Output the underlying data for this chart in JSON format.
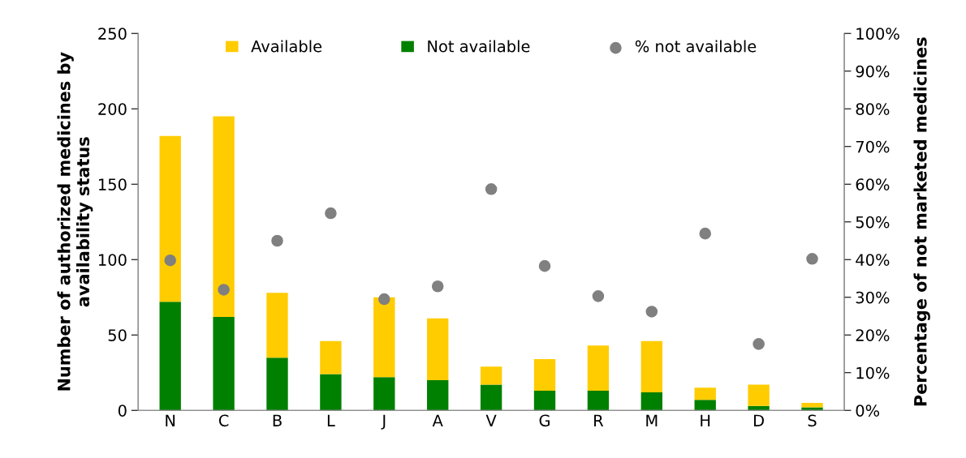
{
  "chart_data": {
    "type": "bar",
    "stacked": true,
    "ylabel": "Number of authorized medicines by availability status",
    "y2label": "Percentage of not marketed medicines",
    "categories": [
      "N",
      "C",
      "B",
      "L",
      "J",
      "A",
      "V",
      "G",
      "R",
      "M",
      "H",
      "D",
      "S"
    ],
    "series": [
      {
        "name": "Not available",
        "color": "#008000",
        "values": [
          72,
          62,
          35,
          24,
          22,
          20,
          17,
          13,
          13,
          12,
          7,
          3,
          2
        ]
      },
      {
        "name": "Available",
        "color": "#ffcc00",
        "values": [
          110,
          133,
          43,
          22,
          53,
          41,
          12,
          21,
          30,
          34,
          8,
          14,
          3
        ]
      },
      {
        "name": "% not available",
        "type": "scatter",
        "axis": "y2",
        "marker": "circle",
        "color": "#808080",
        "values": [
          39.8,
          32,
          45,
          52.3,
          29.5,
          32.9,
          58.7,
          38.3,
          30.3,
          26.2,
          46.9,
          17.6,
          40.2
        ]
      }
    ],
    "ylim": [
      0,
      250
    ],
    "yticks": [
      0,
      50,
      100,
      150,
      200,
      250
    ],
    "y2lim": [
      0,
      100
    ],
    "y2ticks": [
      {
        "value": 0,
        "label": "0%"
      },
      {
        "value": 10,
        "label": "10%"
      },
      {
        "value": 20,
        "label": "20%"
      },
      {
        "value": 30,
        "label": "30%"
      },
      {
        "value": 40,
        "label": "40%"
      },
      {
        "value": 50,
        "label": "50%"
      },
      {
        "value": 60,
        "label": "60%"
      },
      {
        "value": 70,
        "label": "70%"
      },
      {
        "value": 80,
        "label": "80%"
      },
      {
        "value": 90,
        "label": "90%"
      },
      {
        "value": 100,
        "label": "100%"
      }
    ],
    "grid": false,
    "legend": "top"
  }
}
